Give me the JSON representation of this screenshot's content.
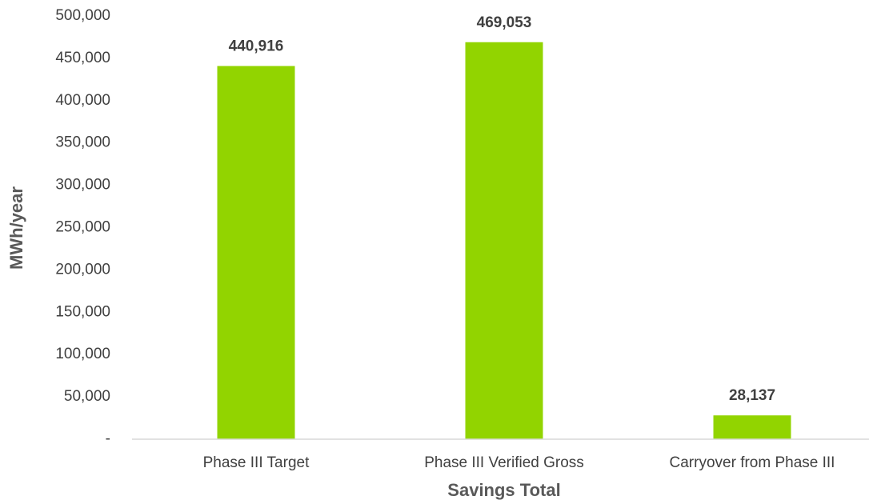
{
  "chart_data": {
    "type": "bar",
    "categories": [
      "Phase III Target",
      "Phase III Verified Gross",
      "Carryover from Phase III"
    ],
    "values": [
      440916,
      469053,
      28137
    ],
    "value_labels": [
      "440,916",
      "469,053",
      "28,137"
    ],
    "color": "#92d400",
    "xlabel": "Savings Total",
    "ylabel": "MWh/year",
    "ylim": [
      0,
      500000
    ],
    "yticks": [
      {
        "value": 0,
        "label": "-"
      },
      {
        "value": 50000,
        "label": "50,000"
      },
      {
        "value": 100000,
        "label": "100,000"
      },
      {
        "value": 150000,
        "label": "150,000"
      },
      {
        "value": 200000,
        "label": "200,000"
      },
      {
        "value": 250000,
        "label": "250,000"
      },
      {
        "value": 300000,
        "label": "300,000"
      },
      {
        "value": 350000,
        "label": "350,000"
      },
      {
        "value": 400000,
        "label": "400,000"
      },
      {
        "value": 450000,
        "label": "450,000"
      },
      {
        "value": 500000,
        "label": "500,000"
      }
    ],
    "grid": false
  }
}
